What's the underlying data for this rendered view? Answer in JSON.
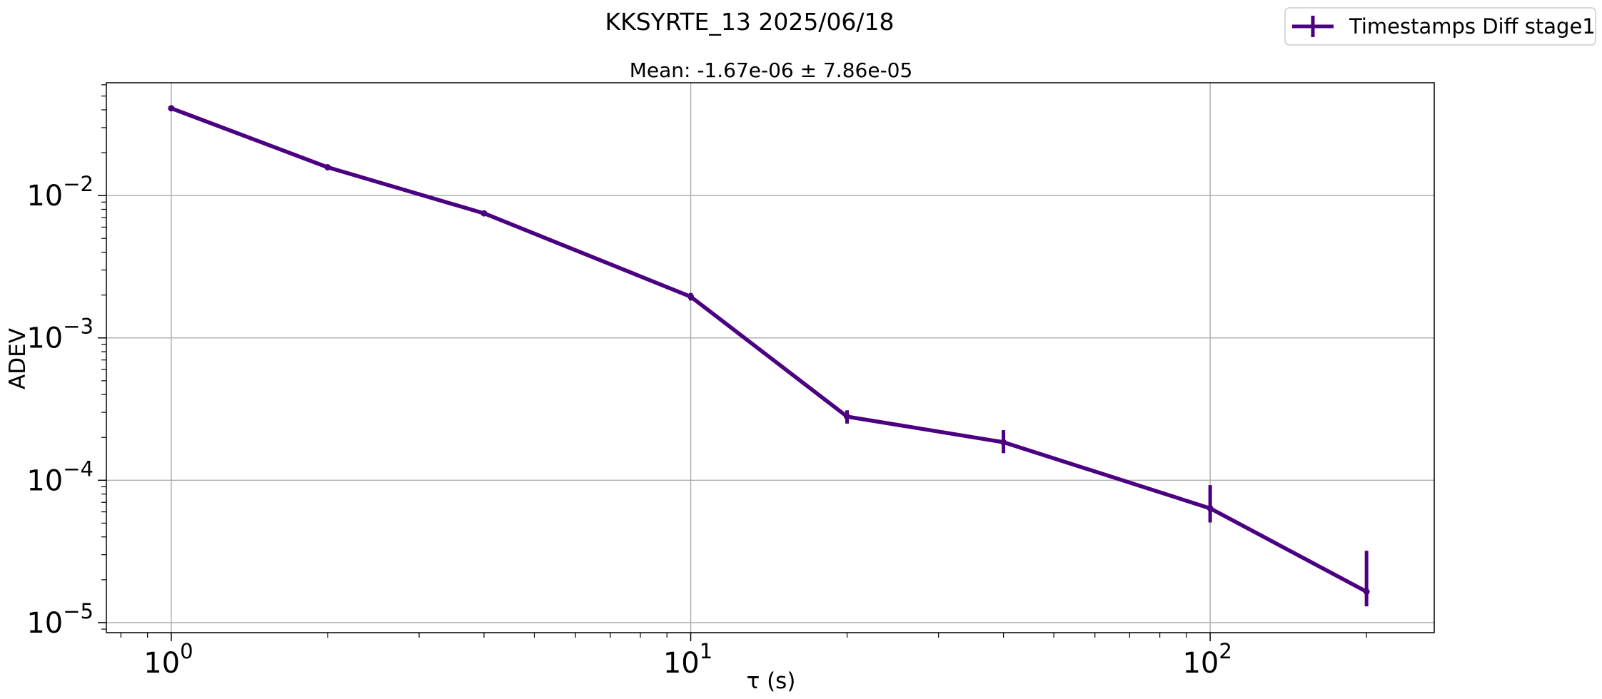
{
  "chart_data": {
    "type": "line",
    "title": "KKSYRTE_13 2025/06/18",
    "subtitle": "Mean: -1.67e-06 ± 7.86e-05",
    "xlabel": "τ (s)",
    "ylabel": "ADEV",
    "xscale": "log",
    "yscale": "log",
    "xlim": [
      0.75,
      270
    ],
    "ylim": [
      8.5e-06,
      0.062
    ],
    "grid": true,
    "legend_position": "top-right",
    "x_ticks": [
      {
        "base": "10",
        "exp": "0",
        "value": 1
      },
      {
        "base": "10",
        "exp": "1",
        "value": 10
      },
      {
        "base": "10",
        "exp": "2",
        "value": 100
      }
    ],
    "y_ticks": [
      {
        "base": "10",
        "exp": "−5",
        "value": 1e-05
      },
      {
        "base": "10",
        "exp": "−4",
        "value": 0.0001
      },
      {
        "base": "10",
        "exp": "−3",
        "value": 0.001
      },
      {
        "base": "10",
        "exp": "−2",
        "value": 0.01
      }
    ],
    "series": [
      {
        "name": "Timestamps Diff stage1",
        "color": "#4b0082",
        "x": [
          1,
          2,
          4,
          10,
          20,
          40,
          100,
          200
        ],
        "y": [
          0.041,
          0.0158,
          0.0075,
          0.00195,
          0.00028,
          0.000185,
          6.35e-05,
          1.65e-05
        ],
        "err_low": [
          0.0004,
          0.0002,
          0.0001,
          0.00012,
          3e-05,
          3e-05,
          1.3e-05,
          3.5e-06
        ],
        "err_high": [
          0.0004,
          0.0002,
          0.0001,
          0.00012,
          3e-05,
          4e-05,
          2.9e-05,
          1.55e-05
        ]
      }
    ]
  }
}
